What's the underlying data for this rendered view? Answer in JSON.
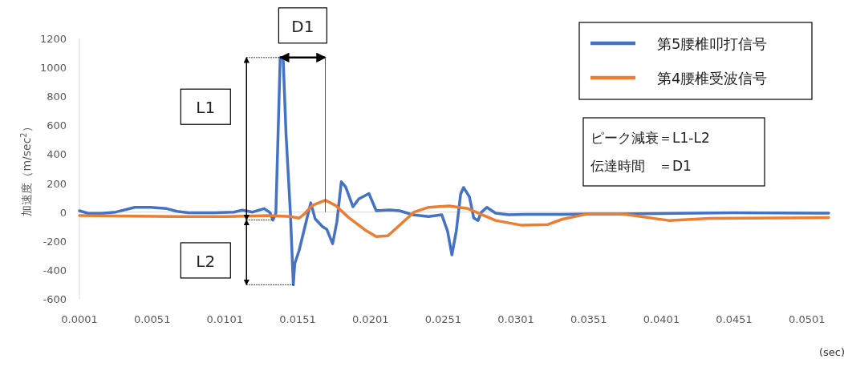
{
  "chart_data": {
    "type": "line",
    "xlabel": "(sec)",
    "ylabel": "加速度（m/sec$^{2}$）",
    "xlim": [
      0.0001,
      0.0516
    ],
    "xticks": [
      0.0001,
      0.0051,
      0.0101,
      0.0151,
      0.0201,
      0.0251,
      0.0301,
      0.0351,
      0.0401,
      0.0451,
      0.0501
    ],
    "ylim": [
      -600,
      1200
    ],
    "yticks": [
      -600,
      -400,
      -200,
      0,
      200,
      400,
      600,
      800,
      1000,
      1200
    ],
    "legend": "top right",
    "grid": false,
    "series": [
      {
        "name": "第5腰椎叩打信号",
        "color": "#4472c4",
        "x": [
          0.0001,
          0.0007,
          0.0016,
          0.0026,
          0.0039,
          0.005,
          0.0061,
          0.0068,
          0.0076,
          0.0094,
          0.0107,
          0.0113,
          0.012,
          0.0128,
          0.0132,
          0.0134,
          0.0136,
          0.0139,
          0.0141,
          0.0143,
          0.0146,
          0.0148,
          0.0149,
          0.0152,
          0.0156,
          0.016,
          0.0163,
          0.0168,
          0.0171,
          0.0175,
          0.0178,
          0.0181,
          0.0184,
          0.0189,
          0.0193,
          0.02,
          0.0205,
          0.0214,
          0.0221,
          0.023,
          0.0241,
          0.025,
          0.0254,
          0.0257,
          0.026,
          0.0263,
          0.0265,
          0.0269,
          0.0272,
          0.0275,
          0.0277,
          0.0281,
          0.0287,
          0.0296,
          0.0307,
          0.0333,
          0.0351,
          0.0373,
          0.045,
          0.0516
        ],
        "values": [
          9,
          -9,
          -9,
          0,
          33,
          33,
          24,
          5,
          -4,
          -4,
          0,
          13,
          0,
          24,
          -4,
          -55,
          -9,
          1068,
          1068,
          539,
          -9,
          -502,
          -356,
          -265,
          -100,
          64,
          -46,
          -100,
          -119,
          -219,
          -64,
          210,
          173,
          37,
          91,
          128,
          9,
          15,
          9,
          -18,
          -31,
          -18,
          -131,
          -296,
          -131,
          124,
          170,
          107,
          -40,
          -58,
          -4,
          33,
          -7,
          -18,
          -16,
          -16,
          -13,
          -13,
          -5,
          -7
        ]
      },
      {
        "name": "第4腰椎受波信号",
        "color": "#ed7d31",
        "x": [
          0.0001,
          0.0066,
          0.0103,
          0.0131,
          0.0146,
          0.0152,
          0.0156,
          0.0161,
          0.017,
          0.0177,
          0.0186,
          0.0198,
          0.0205,
          0.0213,
          0.0222,
          0.0231,
          0.0241,
          0.0255,
          0.0268,
          0.0287,
          0.0305,
          0.0323,
          0.0333,
          0.0351,
          0.0373,
          0.0406,
          0.0434,
          0.0516
        ],
        "values": [
          -24,
          -31,
          -31,
          -24,
          -31,
          -42,
          -9,
          46,
          82,
          46,
          -37,
          -128,
          -170,
          -164,
          -82,
          0,
          33,
          42,
          24,
          -58,
          -91,
          -86,
          -49,
          -11,
          -11,
          -58,
          -44,
          -38
        ]
      }
    ],
    "ref_lines": [
      {
        "axis": "y",
        "value": 0,
        "color": "#d9d9d9"
      }
    ],
    "annotations": [
      "D1",
      "L1",
      "L2",
      "ピーク減衰＝L1-L2",
      "伝達時間　＝D1"
    ]
  }
}
